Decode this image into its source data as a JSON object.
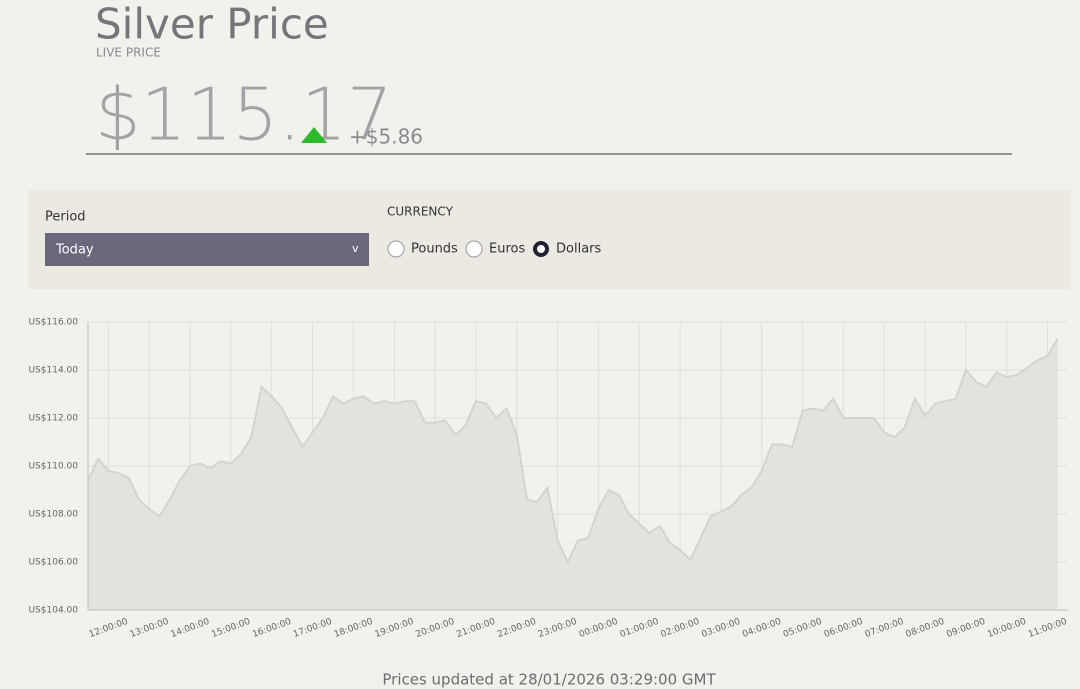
{
  "header": {
    "title": "Silver Price",
    "subtitle": "LIVE PRICE",
    "price": "$115.17",
    "change": "+$5.86"
  },
  "controls": {
    "period_label": "Period",
    "period_value": "Today",
    "period_caret": "v",
    "currency_label": "CURRENCY",
    "currencies": [
      "Pounds",
      "Euros",
      "Dollars"
    ],
    "selected_currency": "Dollars"
  },
  "chart_data": {
    "type": "area",
    "color": "#e3e2de",
    "line_color": "#d4d3ce",
    "grid": true,
    "xlim": [
      "11:30",
      "11:30"
    ],
    "x": [
      "11:30",
      "11:45",
      "12:00",
      "12:15",
      "12:30",
      "12:45",
      "13:00",
      "13:15",
      "13:30",
      "13:45",
      "14:00",
      "14:15",
      "14:30",
      "14:45",
      "15:00",
      "15:15",
      "15:30",
      "15:45",
      "16:00",
      "16:15",
      "16:30",
      "16:45",
      "17:00",
      "17:15",
      "17:30",
      "17:45",
      "18:00",
      "18:15",
      "18:30",
      "18:45",
      "19:00",
      "19:15",
      "19:30",
      "19:45",
      "20:00",
      "20:15",
      "20:30",
      "20:45",
      "21:00",
      "21:15",
      "21:30",
      "21:45",
      "22:00",
      "22:15",
      "22:30",
      "22:45",
      "23:00",
      "23:15",
      "23:30",
      "23:45",
      "00:00",
      "00:15",
      "00:30",
      "00:45",
      "01:00",
      "01:15",
      "01:30",
      "01:45",
      "02:00",
      "02:15",
      "02:30",
      "02:45",
      "03:00",
      "03:15",
      "03:30",
      "03:45",
      "04:00",
      "04:15",
      "04:30",
      "04:45",
      "05:00",
      "05:15",
      "05:30",
      "05:45",
      "06:00",
      "06:15",
      "06:30",
      "06:45",
      "07:00",
      "07:15",
      "07:30",
      "07:45",
      "08:00",
      "08:15",
      "08:30",
      "08:45",
      "09:00",
      "09:15",
      "09:30",
      "09:45",
      "10:00",
      "10:15",
      "10:30",
      "10:45",
      "11:00",
      "11:15"
    ],
    "values": [
      109.4,
      110.3,
      109.8,
      109.7,
      109.5,
      108.6,
      108.2,
      107.9,
      108.6,
      109.4,
      110.0,
      110.1,
      109.9,
      110.2,
      110.1,
      110.5,
      111.2,
      113.3,
      112.9,
      112.4,
      111.6,
      110.8,
      111.4,
      112.0,
      112.9,
      112.6,
      112.8,
      112.9,
      112.6,
      112.7,
      112.6,
      112.7,
      112.7,
      111.8,
      111.8,
      111.9,
      111.3,
      111.7,
      112.7,
      112.6,
      112.0,
      112.4,
      111.3,
      108.6,
      108.5,
      109.1,
      106.9,
      106.0,
      106.9,
      107.0,
      108.2,
      109.0,
      108.8,
      108.0,
      107.6,
      107.2,
      107.5,
      106.8,
      106.5,
      106.1,
      107.0,
      107.9,
      108.1,
      108.3,
      108.8,
      109.1,
      109.8,
      110.9,
      110.9,
      110.8,
      112.3,
      112.4,
      112.3,
      112.8,
      112.0,
      112.0,
      112.0,
      112.0,
      111.4,
      111.2,
      111.6,
      112.8,
      112.1,
      112.6,
      112.7,
      112.8,
      114.0,
      113.5,
      113.3,
      113.9,
      113.7,
      113.8,
      114.1,
      114.4,
      114.6,
      115.3
    ],
    "ylim": [
      104,
      116
    ],
    "yticks": [
      {
        "value": 104,
        "label": "US$104.00"
      },
      {
        "value": 106,
        "label": "US$106.00"
      },
      {
        "value": 108,
        "label": "US$108.00"
      },
      {
        "value": 110,
        "label": "US$110.00"
      },
      {
        "value": 112,
        "label": "US$112.00"
      },
      {
        "value": 114,
        "label": "US$114.00"
      },
      {
        "value": 116,
        "label": "US$116.00"
      }
    ],
    "xticks": [
      "12:00:00",
      "13:00:00",
      "14:00:00",
      "15:00:00",
      "16:00:00",
      "17:00:00",
      "18:00:00",
      "19:00:00",
      "20:00:00",
      "21:00:00",
      "22:00:00",
      "23:00:00",
      "00:00:00",
      "01:00:00",
      "02:00:00",
      "03:00:00",
      "04:00:00",
      "05:00:00",
      "06:00:00",
      "07:00:00",
      "08:00:00",
      "09:00:00",
      "10:00:00",
      "11:00:00"
    ]
  },
  "footer": "Prices updated at 28/01/2026 03:29:00 GMT"
}
